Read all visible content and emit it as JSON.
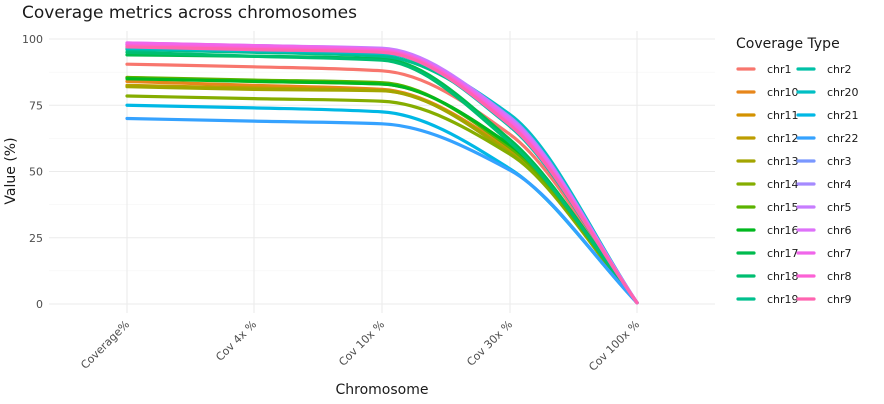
{
  "chart_data": {
    "type": "line",
    "title": "Coverage metrics across chromosomes",
    "xlabel": "Chromosome",
    "ylabel": "Value (%)",
    "categories": [
      "Coverage%",
      "Cov 4x %",
      "Cov 10x %",
      "Cov 30x %",
      "Cov 100x %"
    ],
    "ylim": [
      0,
      100
    ],
    "yticks": [
      0,
      25,
      50,
      75,
      100
    ],
    "grid": true,
    "legend": {
      "title": "Coverage Type",
      "placement": "right",
      "columns": 2
    },
    "series": [
      {
        "name": "chr1",
        "color": "#F8766D",
        "values": [
          90.5,
          89.5,
          88.0,
          64.0,
          0.5
        ]
      },
      {
        "name": "chr10",
        "color": "#E7861B",
        "values": [
          84.0,
          82.5,
          81.0,
          58.0,
          0.5
        ]
      },
      {
        "name": "chr11",
        "color": "#D39200",
        "values": [
          85.5,
          84.0,
          83.0,
          60.0,
          0.5
        ]
      },
      {
        "name": "chr12",
        "color": "#BD9D00",
        "values": [
          82.5,
          81.5,
          80.5,
          57.5,
          0.5
        ]
      },
      {
        "name": "chr13",
        "color": "#A3A500",
        "values": [
          82.0,
          81.0,
          80.5,
          57.0,
          0.5
        ]
      },
      {
        "name": "chr14",
        "color": "#85AD00",
        "values": [
          78.5,
          77.5,
          76.5,
          56.5,
          0.5
        ]
      },
      {
        "name": "chr15",
        "color": "#5BB300",
        "values": [
          85.5,
          84.5,
          83.5,
          59.0,
          0.5
        ]
      },
      {
        "name": "chr16",
        "color": "#00B81F",
        "values": [
          85.0,
          84.0,
          83.0,
          60.0,
          0.5
        ]
      },
      {
        "name": "chr17",
        "color": "#00BB4E",
        "values": [
          94.0,
          93.5,
          92.5,
          62.0,
          0.5
        ]
      },
      {
        "name": "chr18",
        "color": "#00BE71",
        "values": [
          95.0,
          93.5,
          92.0,
          61.0,
          0.5
        ]
      },
      {
        "name": "chr19",
        "color": "#00C08E",
        "values": [
          96.0,
          95.0,
          93.5,
          69.0,
          0.5
        ]
      },
      {
        "name": "chr2",
        "color": "#00C1A7",
        "values": [
          97.0,
          96.0,
          95.0,
          67.0,
          0.5
        ]
      },
      {
        "name": "chr20",
        "color": "#00BFC4",
        "values": [
          96.5,
          95.5,
          94.5,
          71.5,
          0.5
        ]
      },
      {
        "name": "chr21",
        "color": "#00B8E5",
        "values": [
          75.0,
          74.0,
          72.5,
          51.0,
          0.5
        ]
      },
      {
        "name": "chr22",
        "color": "#35A2FF",
        "values": [
          70.0,
          69.0,
          68.0,
          50.5,
          0.5
        ]
      },
      {
        "name": "chr3",
        "color": "#7997FF",
        "values": [
          98.0,
          97.0,
          96.0,
          70.0,
          0.5
        ]
      },
      {
        "name": "chr4",
        "color": "#A58AFF",
        "values": [
          98.0,
          97.5,
          96.0,
          70.5,
          0.5
        ]
      },
      {
        "name": "chr5",
        "color": "#C77CFF",
        "values": [
          98.5,
          97.5,
          96.5,
          70.0,
          0.5
        ]
      },
      {
        "name": "chr6",
        "color": "#DE71F9",
        "values": [
          98.0,
          97.0,
          95.5,
          69.5,
          0.5
        ]
      },
      {
        "name": "chr7",
        "color": "#F066EA",
        "values": [
          98.5,
          97.5,
          96.0,
          69.0,
          0.5
        ]
      },
      {
        "name": "chr8",
        "color": "#FC61D5",
        "values": [
          97.5,
          96.5,
          95.5,
          68.0,
          0.5
        ]
      },
      {
        "name": "chr9",
        "color": "#FF64B0",
        "values": [
          97.0,
          96.0,
          95.0,
          67.5,
          0.5
        ]
      }
    ]
  }
}
